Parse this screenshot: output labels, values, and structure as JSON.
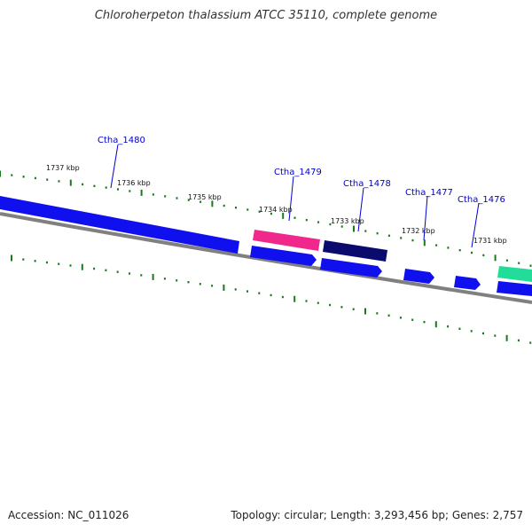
{
  "title": "Chloroherpeton thalassium ATCC 35110, complete genome",
  "footer": {
    "accession": "Accession: NC_011026",
    "summary": "Topology: circular; Length: 3,293,456 bp; Genes: 2,757"
  },
  "colors": {
    "backbone": "#808080",
    "tick": "#1a7a1a",
    "gene_default": "#1010ee",
    "gene_label": "#0000cc"
  },
  "scale_labels": [
    "1737 kbp",
    "1736 kbp",
    "1735 kbp",
    "1734 kbp",
    "1733 kbp",
    "1732 kbp",
    "1731 kbp"
  ],
  "gene_labels": [
    "Ctha_1480",
    "Ctha_1479",
    "Ctha_1478",
    "Ctha_1477",
    "Ctha_1476"
  ]
}
